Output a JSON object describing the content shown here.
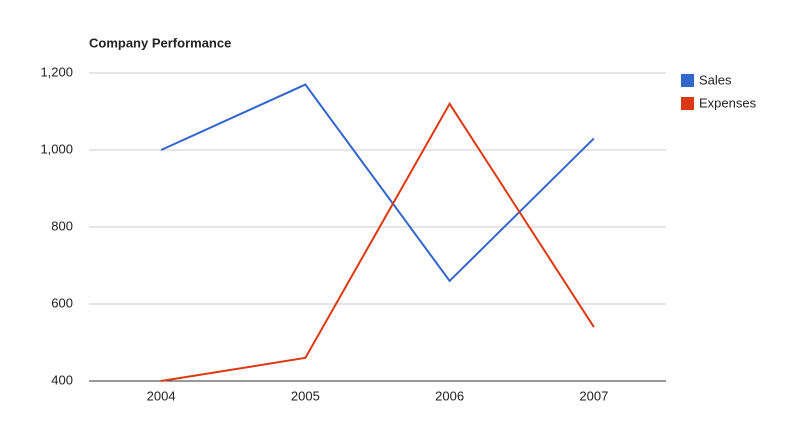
{
  "chart_data": {
    "type": "line",
    "title": "Company Performance",
    "categories": [
      "2004",
      "2005",
      "2006",
      "2007"
    ],
    "series": [
      {
        "name": "Sales",
        "color": "#3366cc",
        "values": [
          1000,
          1170,
          660,
          1030
        ]
      },
      {
        "name": "Expenses",
        "color": "#dc3912",
        "values": [
          400,
          460,
          1120,
          540
        ]
      }
    ],
    "ylim": [
      400,
      1200
    ],
    "yticks": [
      400,
      600,
      800,
      {
        "value": 1000,
        "label": "1,000"
      },
      {
        "value": 1200,
        "label": "1,200"
      }
    ],
    "grid": true,
    "legend": "right"
  }
}
